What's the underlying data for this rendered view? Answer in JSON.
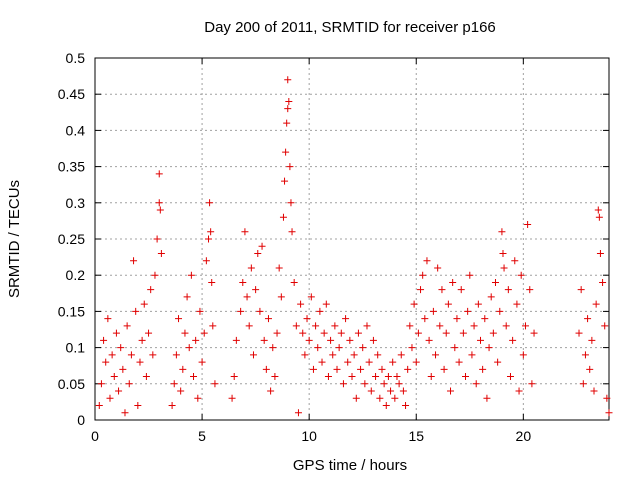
{
  "chart_data": {
    "type": "scatter",
    "title": "Day 200 of 2011, SRMTID for receiver p166",
    "xlabel": "GPS time / hours",
    "ylabel": "SRMTID / TECUs",
    "xlim": [
      0,
      24
    ],
    "ylim": [
      0,
      0.5
    ],
    "xticks": [
      0,
      5,
      10,
      15,
      20
    ],
    "xtick_labels": [
      "0",
      "5",
      "10",
      "15",
      "20"
    ],
    "yticks": [
      0,
      0.05,
      0.1,
      0.15,
      0.2,
      0.25,
      0.3,
      0.35,
      0.4,
      0.45,
      0.5
    ],
    "ytick_labels": [
      "0",
      "0.05",
      "0.1",
      "0.15",
      "0.2",
      "0.25",
      "0.3",
      "0.35",
      "0.4",
      "0.45",
      "0.5"
    ],
    "grid": true,
    "marker": "plus",
    "color": "#e00000",
    "series": [
      {
        "values": [
          [
            0.2,
            0.02
          ],
          [
            0.3,
            0.05
          ],
          [
            0.4,
            0.11
          ],
          [
            0.5,
            0.08
          ],
          [
            0.6,
            0.14
          ],
          [
            0.7,
            0.03
          ],
          [
            0.8,
            0.09
          ],
          [
            0.9,
            0.06
          ],
          [
            1.0,
            0.12
          ],
          [
            1.1,
            0.04
          ],
          [
            1.2,
            0.1
          ],
          [
            1.3,
            0.07
          ],
          [
            1.4,
            0.01
          ],
          [
            1.5,
            0.13
          ],
          [
            1.6,
            0.05
          ],
          [
            1.7,
            0.09
          ],
          [
            1.8,
            0.22
          ],
          [
            1.9,
            0.15
          ],
          [
            2.0,
            0.02
          ],
          [
            2.1,
            0.08
          ],
          [
            2.2,
            0.11
          ],
          [
            2.3,
            0.16
          ],
          [
            2.4,
            0.06
          ],
          [
            2.5,
            0.12
          ],
          [
            2.6,
            0.18
          ],
          [
            2.7,
            0.09
          ],
          [
            2.8,
            0.2
          ],
          [
            2.9,
            0.25
          ],
          [
            3.0,
            0.34
          ],
          [
            3.0,
            0.3
          ],
          [
            3.05,
            0.29
          ],
          [
            3.1,
            0.23
          ],
          [
            3.6,
            0.02
          ],
          [
            3.7,
            0.05
          ],
          [
            3.8,
            0.09
          ],
          [
            3.9,
            0.14
          ],
          [
            4.0,
            0.04
          ],
          [
            4.1,
            0.07
          ],
          [
            4.2,
            0.12
          ],
          [
            4.3,
            0.17
          ],
          [
            4.4,
            0.1
          ],
          [
            4.5,
            0.2
          ],
          [
            4.6,
            0.06
          ],
          [
            4.7,
            0.11
          ],
          [
            4.8,
            0.03
          ],
          [
            4.9,
            0.15
          ],
          [
            5.0,
            0.08
          ],
          [
            5.1,
            0.12
          ],
          [
            5.2,
            0.22
          ],
          [
            5.3,
            0.25
          ],
          [
            5.35,
            0.3
          ],
          [
            5.4,
            0.26
          ],
          [
            5.45,
            0.19
          ],
          [
            5.5,
            0.13
          ],
          [
            5.6,
            0.05
          ],
          [
            6.4,
            0.03
          ],
          [
            6.5,
            0.06
          ],
          [
            6.6,
            0.11
          ],
          [
            6.8,
            0.15
          ],
          [
            6.9,
            0.19
          ],
          [
            7.0,
            0.26
          ],
          [
            7.1,
            0.17
          ],
          [
            7.2,
            0.13
          ],
          [
            7.3,
            0.21
          ],
          [
            7.4,
            0.09
          ],
          [
            7.5,
            0.18
          ],
          [
            7.6,
            0.23
          ],
          [
            7.7,
            0.15
          ],
          [
            7.8,
            0.24
          ],
          [
            7.9,
            0.11
          ],
          [
            8.0,
            0.07
          ],
          [
            8.1,
            0.14
          ],
          [
            8.2,
            0.04
          ],
          [
            8.3,
            0.1
          ],
          [
            8.4,
            0.06
          ],
          [
            8.5,
            0.12
          ],
          [
            8.6,
            0.21
          ],
          [
            8.7,
            0.17
          ],
          [
            8.8,
            0.28
          ],
          [
            8.85,
            0.33
          ],
          [
            8.9,
            0.37
          ],
          [
            8.95,
            0.41
          ],
          [
            9.0,
            0.47
          ],
          [
            9.0,
            0.43
          ],
          [
            9.05,
            0.44
          ],
          [
            9.1,
            0.35
          ],
          [
            9.15,
            0.3
          ],
          [
            9.2,
            0.26
          ],
          [
            9.3,
            0.19
          ],
          [
            9.4,
            0.13
          ],
          [
            9.5,
            0.01
          ],
          [
            9.6,
            0.16
          ],
          [
            9.7,
            0.12
          ],
          [
            9.8,
            0.09
          ],
          [
            9.9,
            0.14
          ],
          [
            10.0,
            0.11
          ],
          [
            10.1,
            0.17
          ],
          [
            10.2,
            0.07
          ],
          [
            10.3,
            0.13
          ],
          [
            10.4,
            0.1
          ],
          [
            10.5,
            0.15
          ],
          [
            10.6,
            0.08
          ],
          [
            10.7,
            0.12
          ],
          [
            10.8,
            0.16
          ],
          [
            10.9,
            0.06
          ],
          [
            11.0,
            0.11
          ],
          [
            11.1,
            0.09
          ],
          [
            11.2,
            0.13
          ],
          [
            11.3,
            0.07
          ],
          [
            11.4,
            0.1
          ],
          [
            11.5,
            0.12
          ],
          [
            11.6,
            0.05
          ],
          [
            11.7,
            0.14
          ],
          [
            11.8,
            0.08
          ],
          [
            11.9,
            0.11
          ],
          [
            12.0,
            0.06
          ],
          [
            12.1,
            0.09
          ],
          [
            12.2,
            0.03
          ],
          [
            12.3,
            0.12
          ],
          [
            12.4,
            0.07
          ],
          [
            12.5,
            0.1
          ],
          [
            12.6,
            0.05
          ],
          [
            12.7,
            0.13
          ],
          [
            12.8,
            0.08
          ],
          [
            12.9,
            0.04
          ],
          [
            13.0,
            0.11
          ],
          [
            13.1,
            0.06
          ],
          [
            13.2,
            0.09
          ],
          [
            13.3,
            0.03
          ],
          [
            13.4,
            0.07
          ],
          [
            13.5,
            0.05
          ],
          [
            13.6,
            0.02
          ],
          [
            13.7,
            0.06
          ],
          [
            13.8,
            0.04
          ],
          [
            13.9,
            0.08
          ],
          [
            14.0,
            0.03
          ],
          [
            14.1,
            0.06
          ],
          [
            14.2,
            0.05
          ],
          [
            14.3,
            0.09
          ],
          [
            14.4,
            0.04
          ],
          [
            14.5,
            0.02
          ],
          [
            14.6,
            0.07
          ],
          [
            14.7,
            0.13
          ],
          [
            14.8,
            0.1
          ],
          [
            14.9,
            0.16
          ],
          [
            15.0,
            0.08
          ],
          [
            15.1,
            0.12
          ],
          [
            15.2,
            0.18
          ],
          [
            15.3,
            0.2
          ],
          [
            15.4,
            0.14
          ],
          [
            15.5,
            0.22
          ],
          [
            15.6,
            0.11
          ],
          [
            15.7,
            0.06
          ],
          [
            15.8,
            0.15
          ],
          [
            15.9,
            0.09
          ],
          [
            16.0,
            0.21
          ],
          [
            16.1,
            0.13
          ],
          [
            16.2,
            0.18
          ],
          [
            16.3,
            0.07
          ],
          [
            16.4,
            0.12
          ],
          [
            16.5,
            0.16
          ],
          [
            16.6,
            0.04
          ],
          [
            16.7,
            0.19
          ],
          [
            16.8,
            0.1
          ],
          [
            16.9,
            0.14
          ],
          [
            17.0,
            0.08
          ],
          [
            17.1,
            0.18
          ],
          [
            17.2,
            0.12
          ],
          [
            17.3,
            0.06
          ],
          [
            17.4,
            0.15
          ],
          [
            17.5,
            0.2
          ],
          [
            17.6,
            0.09
          ],
          [
            17.7,
            0.13
          ],
          [
            17.8,
            0.05
          ],
          [
            17.9,
            0.16
          ],
          [
            18.0,
            0.11
          ],
          [
            18.1,
            0.07
          ],
          [
            18.2,
            0.14
          ],
          [
            18.3,
            0.03
          ],
          [
            18.4,
            0.1
          ],
          [
            18.5,
            0.17
          ],
          [
            18.6,
            0.12
          ],
          [
            18.7,
            0.19
          ],
          [
            18.8,
            0.08
          ],
          [
            18.9,
            0.15
          ],
          [
            19.0,
            0.26
          ],
          [
            19.05,
            0.23
          ],
          [
            19.1,
            0.21
          ],
          [
            19.2,
            0.13
          ],
          [
            19.3,
            0.18
          ],
          [
            19.4,
            0.06
          ],
          [
            19.5,
            0.11
          ],
          [
            19.6,
            0.22
          ],
          [
            19.7,
            0.16
          ],
          [
            19.8,
            0.04
          ],
          [
            19.9,
            0.2
          ],
          [
            20.0,
            0.09
          ],
          [
            20.1,
            0.13
          ],
          [
            20.2,
            0.27
          ],
          [
            20.3,
            0.18
          ],
          [
            20.4,
            0.05
          ],
          [
            20.5,
            0.12
          ],
          [
            22.6,
            0.12
          ],
          [
            22.7,
            0.18
          ],
          [
            22.8,
            0.05
          ],
          [
            22.9,
            0.09
          ],
          [
            23.0,
            0.14
          ],
          [
            23.1,
            0.07
          ],
          [
            23.2,
            0.11
          ],
          [
            23.3,
            0.04
          ],
          [
            23.4,
            0.16
          ],
          [
            23.5,
            0.29
          ],
          [
            23.55,
            0.28
          ],
          [
            23.6,
            0.23
          ],
          [
            23.7,
            0.19
          ],
          [
            23.8,
            0.13
          ],
          [
            23.9,
            0.03
          ],
          [
            24.0,
            0.01
          ]
        ]
      }
    ]
  }
}
